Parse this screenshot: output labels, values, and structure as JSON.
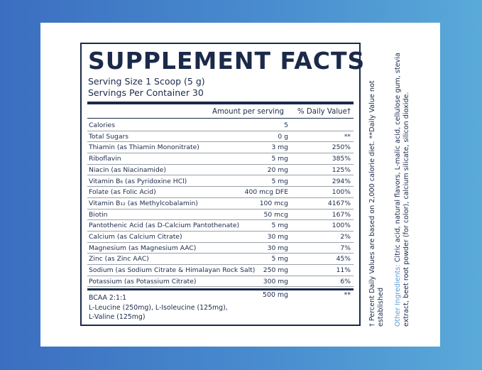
{
  "panel": {
    "title": "SUPPLEMENT FACTS",
    "serving_size": "Serving Size 1 Scoop (5 g)",
    "servings_per_container": "Servings Per Container 30",
    "header": {
      "amount": "Amount per serving",
      "dv": "% Daily Value†"
    },
    "rows": [
      [
        "Calories",
        "5",
        ""
      ],
      [
        "Total Sugars",
        "0 g",
        "**"
      ],
      [
        "Thiamin (as Thiamin Mononitrate)",
        "3 mg",
        "250%"
      ],
      [
        "Riboflavin",
        "5 mg",
        "385%"
      ],
      [
        "Niacin (as Niacinamide)",
        "20 mg",
        "125%"
      ],
      [
        "Vitamin B₆ (as Pyridoxine HCl)",
        "5 mg",
        "294%"
      ],
      [
        "Folate (as Folic Acid)",
        "400 mcg DFE",
        "100%"
      ],
      [
        "Vitamin B₁₂ (as Methylcobalamin)",
        "100 mcg",
        "4167%"
      ],
      [
        "Biotin",
        "50 mcg",
        "167%"
      ],
      [
        "Pantothenic Acid (as D-Calcium Pantothenate)",
        "5 mg",
        "100%"
      ],
      [
        "Calcium (as Calcium Citrate)",
        "30 mg",
        "2%"
      ],
      [
        "Magnesium (as Magnesium AAC)",
        "30 mg",
        "7%"
      ],
      [
        "Zinc (as Zinc AAC)",
        "5 mg",
        "45%"
      ],
      [
        "Sodium (as Sodium Citrate & Himalayan Rock Salt)",
        "250 mg",
        "11%"
      ],
      [
        "Potassium (as Potassium Citrate)",
        "300 mg",
        "6%"
      ]
    ],
    "bcaa": {
      "name": "BCAA 2:1:1",
      "amount": "500 mg",
      "dv": "**",
      "detail": [
        "L-Leucine (250mg), L-Isoleucine (125mg),",
        "L-Valine (125mg)"
      ]
    }
  },
  "side_note": {
    "footnote": "† Percent Daily Values are based on 2,000 calorie diet. **Daily Value not established",
    "ingredients_label": "Other Ingredients:",
    "ingredients": "Citric acid, natural flavors, L-malic acid, cellulose gum, stevia extract, beet root powder (for color), calcium silicate, silicon dioxide."
  }
}
